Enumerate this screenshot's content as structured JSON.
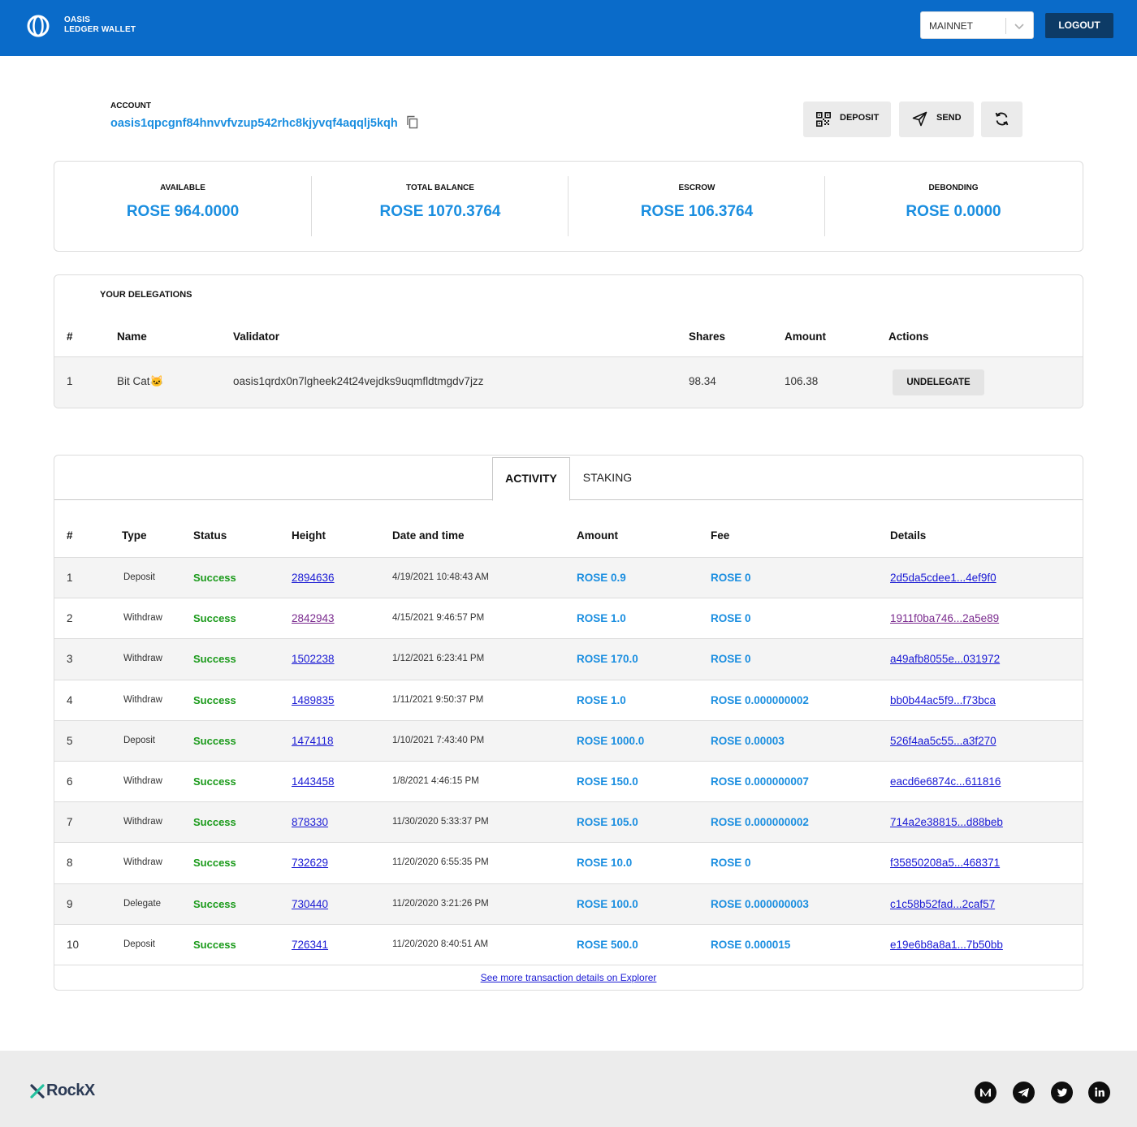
{
  "header": {
    "brand_line1": "OASIS",
    "brand_line2": "LEDGER WALLET",
    "network": "MAINNET",
    "logout_label": "LOGOUT"
  },
  "account": {
    "label": "ACCOUNT",
    "address": "oasis1qpcgnf84hnvvfvzup542rhc8kjyvqf4aqqlj5kqh",
    "deposit_label": "DEPOSIT",
    "send_label": "SEND"
  },
  "balances": [
    {
      "label": "AVAILABLE",
      "amount": "ROSE 964.0000"
    },
    {
      "label": "TOTAL BALANCE",
      "amount": "ROSE 1070.3764"
    },
    {
      "label": "ESCROW",
      "amount": "ROSE 106.3764"
    },
    {
      "label": "DEBONDING",
      "amount": "ROSE 0.0000"
    }
  ],
  "delegations": {
    "title": "YOUR DELEGATIONS",
    "columns": [
      "#",
      "Name",
      "Validator",
      "Shares",
      "Amount",
      "Actions"
    ],
    "rows": [
      {
        "num": "1",
        "name": "Bit Cat🐱",
        "validator": "oasis1qrdx0n7lgheek24t24vejdks9uqmfldtmgdv7jzz",
        "shares": "98.34",
        "amount": "106.38",
        "action": "UNDELEGATE"
      }
    ]
  },
  "tabs": {
    "activity": "ACTIVITY",
    "staking": "STAKING"
  },
  "transactions": {
    "columns": [
      "#",
      "Type",
      "Status",
      "Height",
      "Date and time",
      "Amount",
      "Fee",
      "Details"
    ],
    "rows": [
      {
        "num": "1",
        "type": "Deposit",
        "status": "Success",
        "height": "2894636",
        "date": "4/19/2021 10:48:43 AM",
        "amount": "ROSE 0.9",
        "fee": "ROSE 0",
        "details": "2d5da5cdee1...4ef9f0",
        "visited": false
      },
      {
        "num": "2",
        "type": "Withdraw",
        "status": "Success",
        "height": "2842943",
        "date": "4/15/2021 9:46:57 PM",
        "amount": "ROSE 1.0",
        "fee": "ROSE 0",
        "details": "1911f0ba746...2a5e89",
        "visited": true
      },
      {
        "num": "3",
        "type": "Withdraw",
        "status": "Success",
        "height": "1502238",
        "date": "1/12/2021 6:23:41 PM",
        "amount": "ROSE 170.0",
        "fee": "ROSE 0",
        "details": "a49afb8055e...031972",
        "visited": false
      },
      {
        "num": "4",
        "type": "Withdraw",
        "status": "Success",
        "height": "1489835",
        "date": "1/11/2021 9:50:37 PM",
        "amount": "ROSE 1.0",
        "fee": "ROSE 0.000000002",
        "details": "bb0b44ac5f9...f73bca",
        "visited": false
      },
      {
        "num": "5",
        "type": "Deposit",
        "status": "Success",
        "height": "1474118",
        "date": "1/10/2021 7:43:40 PM",
        "amount": "ROSE 1000.0",
        "fee": "ROSE 0.00003",
        "details": "526f4aa5c55...a3f270",
        "visited": false
      },
      {
        "num": "6",
        "type": "Withdraw",
        "status": "Success",
        "height": "1443458",
        "date": "1/8/2021 4:46:15 PM",
        "amount": "ROSE 150.0",
        "fee": "ROSE 0.000000007",
        "details": "eacd6e6874c...611816",
        "visited": false
      },
      {
        "num": "7",
        "type": "Withdraw",
        "status": "Success",
        "height": "878330",
        "date": "11/30/2020 5:33:37 PM",
        "amount": "ROSE 105.0",
        "fee": "ROSE 0.000000002",
        "details": "714a2e38815...d88beb",
        "visited": false
      },
      {
        "num": "8",
        "type": "Withdraw",
        "status": "Success",
        "height": "732629",
        "date": "11/20/2020 6:55:35 PM",
        "amount": "ROSE 10.0",
        "fee": "ROSE 0",
        "details": "f35850208a5...468371",
        "visited": false
      },
      {
        "num": "9",
        "type": "Delegate",
        "status": "Success",
        "height": "730440",
        "date": "11/20/2020 3:21:26 PM",
        "amount": "ROSE 100.0",
        "fee": "ROSE 0.000000003",
        "details": "c1c58b52fad...2caf57",
        "visited": false
      },
      {
        "num": "10",
        "type": "Deposit",
        "status": "Success",
        "height": "726341",
        "date": "11/20/2020 8:40:51 AM",
        "amount": "ROSE 500.0",
        "fee": "ROSE 0.000015",
        "details": "e19e6b8a8a1...7b50bb",
        "visited": false
      }
    ],
    "explorer_link": "See more transaction details on Explorer"
  },
  "footer": {
    "brand": "RockX",
    "social_icons": [
      "medium-icon",
      "telegram-icon",
      "twitter-icon",
      "linkedin-icon"
    ]
  },
  "colors": {
    "header_bg": "#0a6bc9",
    "accent_blue": "#1a8ee0",
    "success_green": "#1a9a1a",
    "link_blue": "#1a1ad4",
    "visited_purple": "#7a2a8e",
    "logout_bg": "#0d3b66"
  }
}
